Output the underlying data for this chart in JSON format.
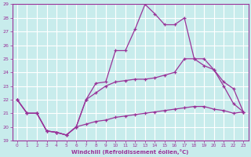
{
  "xlabel": "Windchill (Refroidissement éolien,°C)",
  "bg_color": "#c8ecec",
  "grid_color": "#ffffff",
  "line_color": "#993399",
  "xlim": [
    -0.5,
    23.5
  ],
  "ylim": [
    19,
    29
  ],
  "xticks": [
    0,
    1,
    2,
    3,
    4,
    5,
    6,
    7,
    8,
    9,
    10,
    11,
    12,
    13,
    14,
    15,
    16,
    17,
    18,
    19,
    20,
    21,
    22,
    23
  ],
  "yticks": [
    19,
    20,
    21,
    22,
    23,
    24,
    25,
    26,
    27,
    28,
    29
  ],
  "line1_x": [
    0,
    1,
    2,
    3,
    4,
    5,
    6,
    7,
    8,
    9,
    10,
    11,
    12,
    13,
    14,
    15,
    16,
    17,
    18,
    19,
    20,
    21,
    22,
    23
  ],
  "line1_y": [
    22.0,
    21.0,
    21.0,
    19.7,
    19.6,
    19.4,
    20.0,
    22.0,
    23.2,
    23.3,
    25.6,
    25.6,
    27.2,
    29.0,
    28.3,
    27.5,
    27.5,
    28.0,
    25.0,
    25.0,
    24.2,
    23.0,
    21.7,
    21.1
  ],
  "line2_x": [
    0,
    1,
    2,
    3,
    4,
    5,
    6,
    7,
    8,
    9,
    10,
    11,
    12,
    13,
    14,
    15,
    16,
    17,
    18,
    19,
    20,
    21,
    22,
    23
  ],
  "line2_y": [
    22.0,
    21.0,
    21.0,
    19.7,
    19.6,
    19.4,
    20.0,
    22.0,
    22.5,
    23.0,
    23.3,
    23.4,
    23.5,
    23.5,
    23.6,
    23.8,
    24.0,
    25.0,
    25.0,
    24.5,
    24.2,
    23.3,
    22.8,
    21.1
  ],
  "line3_x": [
    0,
    1,
    2,
    3,
    4,
    5,
    6,
    7,
    8,
    9,
    10,
    11,
    12,
    13,
    14,
    15,
    16,
    17,
    18,
    19,
    20,
    21,
    22,
    23
  ],
  "line3_y": [
    22.0,
    21.0,
    21.0,
    19.7,
    19.6,
    19.4,
    20.0,
    20.2,
    20.4,
    20.5,
    20.7,
    20.8,
    20.9,
    21.0,
    21.1,
    21.2,
    21.3,
    21.4,
    21.5,
    21.5,
    21.3,
    21.2,
    21.0,
    21.1
  ]
}
